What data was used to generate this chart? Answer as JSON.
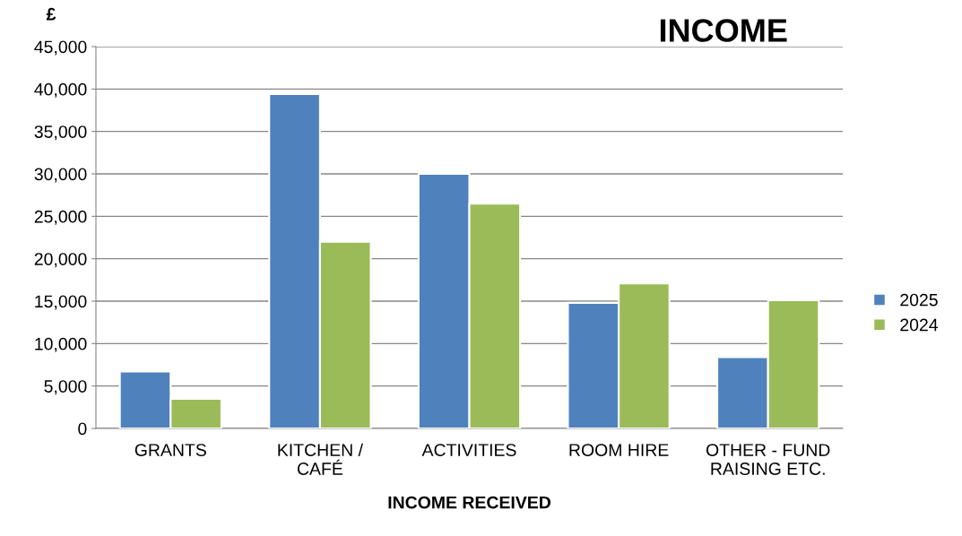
{
  "chart_data": {
    "type": "bar",
    "title": "INCOME",
    "xlabel": "INCOME RECEIVED",
    "ylabel": "£",
    "categories": [
      "GRANTS",
      "KITCHEN /\nCAFÉ",
      "ACTIVITIES",
      "ROOM HIRE",
      "OTHER - FUND\nRAISING ETC."
    ],
    "series": [
      {
        "name": "2025",
        "color": "#4f81bd",
        "values": [
          6700,
          39400,
          30000,
          14800,
          8400
        ]
      },
      {
        "name": "2024",
        "color": "#9bbb59",
        "values": [
          3500,
          22000,
          26500,
          17100,
          15100
        ]
      }
    ],
    "ylim": [
      0,
      45000
    ],
    "yticks": [
      {
        "value": 0,
        "label": "0"
      },
      {
        "value": 5000,
        "label": "5,000"
      },
      {
        "value": 10000,
        "label": "10,000"
      },
      {
        "value": 15000,
        "label": "15,000"
      },
      {
        "value": 20000,
        "label": "20,000"
      },
      {
        "value": 25000,
        "label": "25,000"
      },
      {
        "value": 30000,
        "label": "30,000"
      },
      {
        "value": 35000,
        "label": "35,000"
      },
      {
        "value": 40000,
        "label": "40,000"
      },
      {
        "value": 45000,
        "label": "45,000"
      }
    ],
    "grid": "y",
    "legend": "right"
  }
}
